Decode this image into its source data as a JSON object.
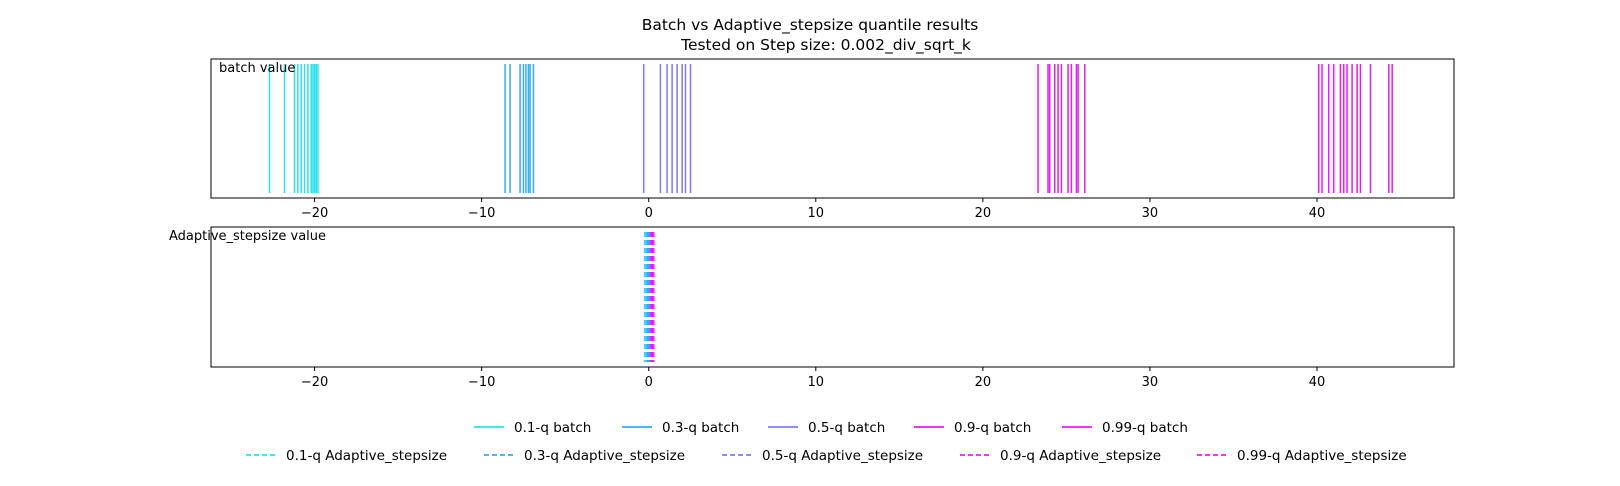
{
  "chart_data": {
    "type": "event-lines",
    "title": "Batch vs Adaptive_stepsize quantile results",
    "subtitle": "Tested on Step size: 0.002_div_sqrt_k",
    "xlim": [
      -26.2,
      48.2
    ],
    "xticks": [
      -20,
      -10,
      0,
      10,
      20,
      30,
      40
    ],
    "xtick_labels": [
      "−20",
      "−10",
      "0",
      "10",
      "20",
      "30",
      "40"
    ],
    "grid": false,
    "legend_placement": "bottom-center",
    "colors": {
      "q01": "#2ee0ee",
      "q03": "#3aaaf2",
      "q05": "#7b7bf0",
      "q09": "#e020ea",
      "q099": "#f018f4"
    },
    "panels": [
      {
        "label": "batch value",
        "series": [
          {
            "name": "0.1-q batch",
            "color_key": "q01",
            "dash": false,
            "x": [
              -22.7,
              -21.8,
              -21.2,
              -21.0,
              -20.8,
              -20.6,
              -20.4,
              -20.2,
              -20.1,
              -20.0,
              -19.9,
              -19.8
            ]
          },
          {
            "name": "0.3-q batch",
            "color_key": "q03",
            "dash": false,
            "x": [
              -8.6,
              -8.3,
              -7.7,
              -7.5,
              -7.35,
              -7.2,
              -7.1,
              -6.9
            ]
          },
          {
            "name": "0.5-q batch",
            "color_key": "q05",
            "dash": false,
            "x": [
              -0.3,
              0.7,
              1.1,
              1.4,
              1.7,
              2.0,
              2.2,
              2.5
            ]
          },
          {
            "name": "0.9-q batch",
            "color_key": "q09",
            "dash": false,
            "x": [
              23.3,
              23.9,
              24.0,
              24.3,
              24.5,
              24.7,
              25.1,
              25.3,
              25.6,
              25.7,
              26.1
            ]
          },
          {
            "name": "0.99-q batch",
            "color_key": "q099",
            "dash": false,
            "x": [
              40.1,
              40.3,
              40.7,
              41.0,
              41.4,
              41.6,
              41.8,
              42.1,
              42.4,
              42.6,
              43.2,
              44.3,
              44.5
            ]
          }
        ]
      },
      {
        "label": "Adaptive_stepsize value",
        "series": [
          {
            "name": "0.1-q Adaptive_stepsize",
            "color_key": "q01",
            "dash": true,
            "x": [
              -0.25,
              -0.2,
              -0.15
            ]
          },
          {
            "name": "0.3-q Adaptive_stepsize",
            "color_key": "q03",
            "dash": true,
            "x": [
              -0.1,
              -0.05,
              0.0
            ]
          },
          {
            "name": "0.5-q Adaptive_stepsize",
            "color_key": "q05",
            "dash": true,
            "x": [
              0.05,
              0.1
            ]
          },
          {
            "name": "0.9-q Adaptive_stepsize",
            "color_key": "q09",
            "dash": true,
            "x": [
              0.15,
              0.2
            ]
          },
          {
            "name": "0.99-q Adaptive_stepsize",
            "color_key": "q099",
            "dash": true,
            "x": [
              0.25,
              0.3
            ]
          }
        ]
      }
    ],
    "legend": {
      "rows": [
        [
          "0.1-q batch",
          "0.3-q batch",
          "0.5-q batch",
          "0.9-q batch",
          "0.99-q batch"
        ],
        [
          "0.1-q Adaptive_stepsize",
          "0.3-q Adaptive_stepsize",
          "0.5-q Adaptive_stepsize",
          "0.9-q Adaptive_stepsize",
          "0.99-q Adaptive_stepsize"
        ]
      ]
    }
  }
}
